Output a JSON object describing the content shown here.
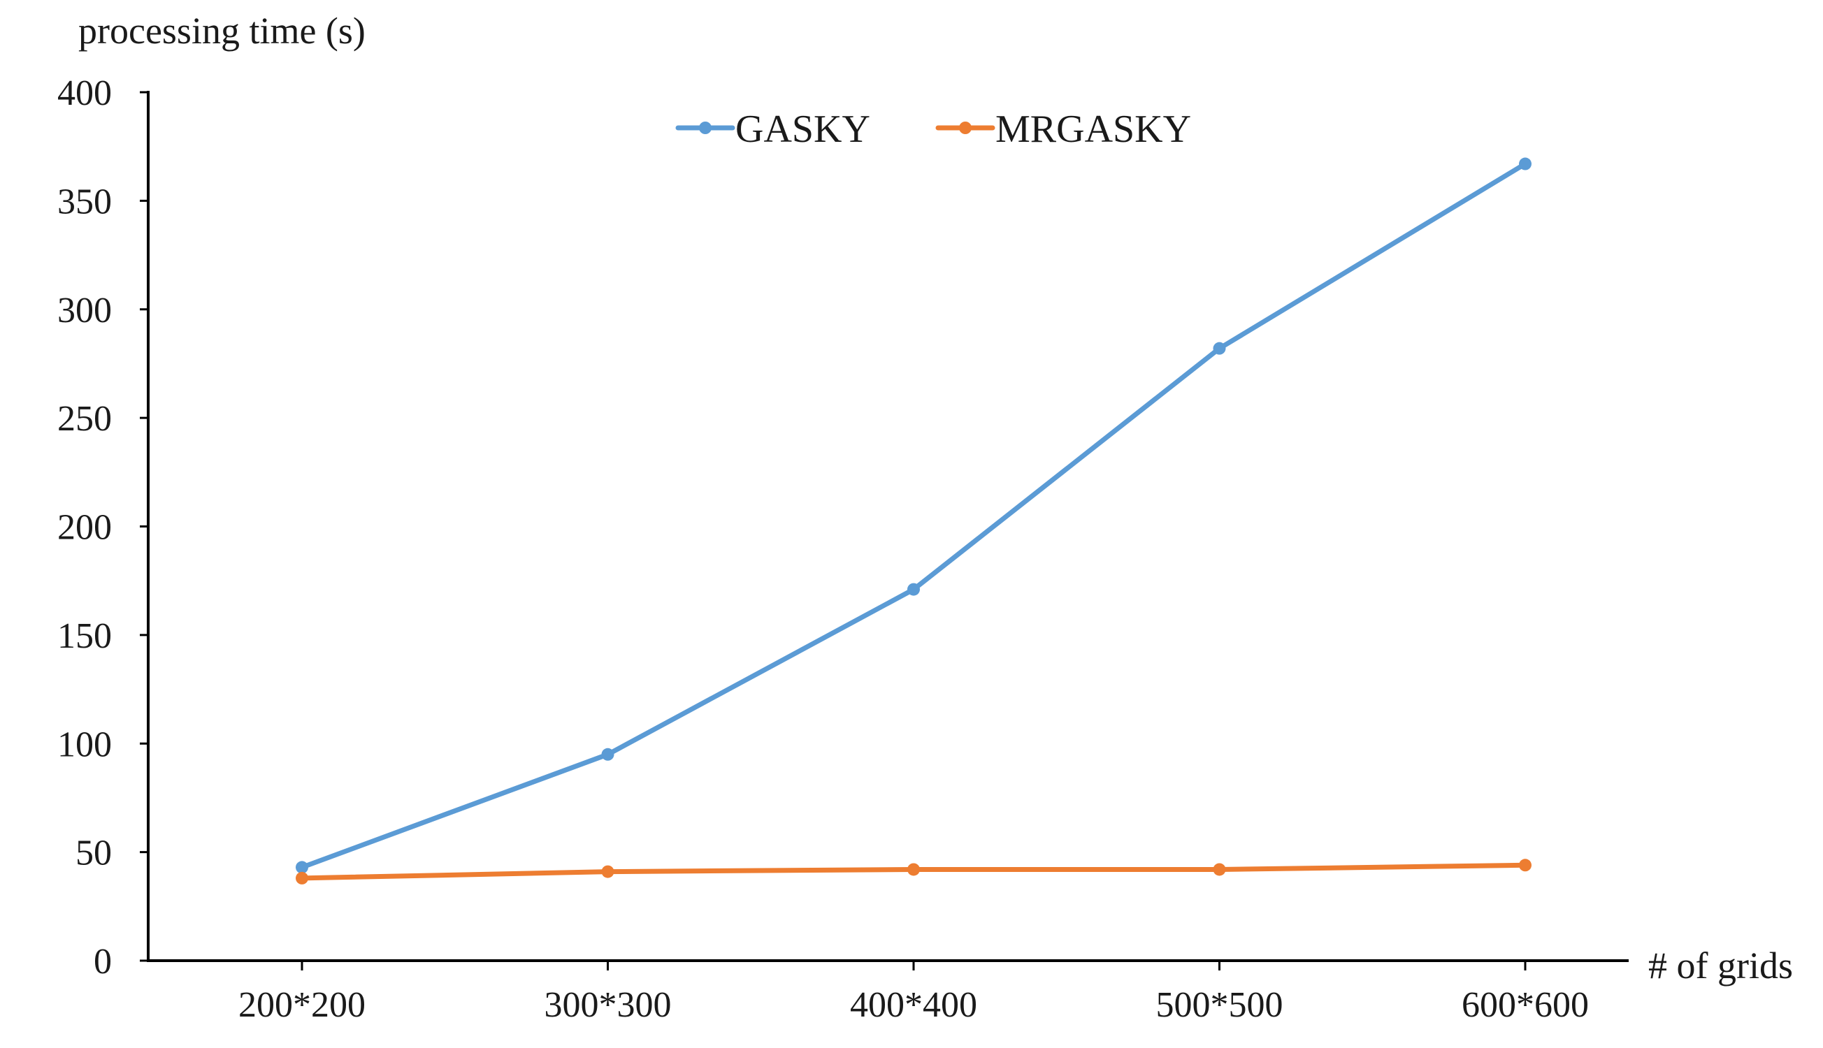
{
  "chart_data": {
    "type": "line",
    "title": "",
    "xlabel": "# of grids",
    "ylabel": "processing time (s)",
    "categories": [
      "200*200",
      "300*300",
      "400*400",
      "500*500",
      "600*600"
    ],
    "ylim": [
      0,
      400
    ],
    "yticks": [
      0,
      50,
      100,
      150,
      200,
      250,
      300,
      350,
      400
    ],
    "grid": false,
    "legend_position": "top-center",
    "series": [
      {
        "name": "GASKY",
        "color": "#5B9BD5",
        "values": [
          43,
          95,
          171,
          282,
          367
        ]
      },
      {
        "name": "MRGASKY",
        "color": "#ED7D31",
        "values": [
          38,
          41,
          42,
          42,
          44
        ]
      }
    ]
  }
}
